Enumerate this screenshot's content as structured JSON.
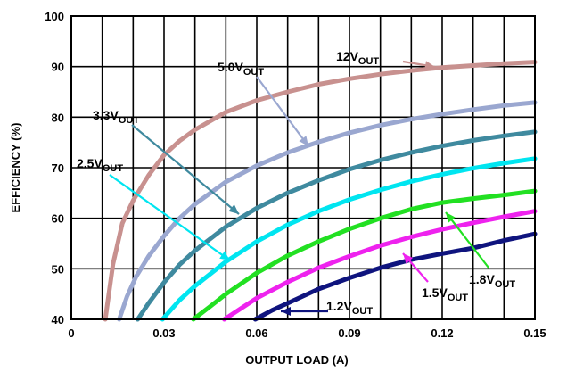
{
  "chart_data": {
    "type": "line",
    "xlabel": "OUTPUT LOAD (A)",
    "ylabel": "EFFICIENCY (%)",
    "xlim": [
      0,
      0.15
    ],
    "ylim": [
      40,
      100
    ],
    "x_ticks": [
      "0",
      "0.03",
      "0.06",
      "0.09",
      "0.12",
      "0.15"
    ],
    "y_ticks": [
      "40",
      "50",
      "60",
      "70",
      "80",
      "90",
      "100"
    ],
    "grid": true,
    "series": [
      {
        "name": "12V",
        "name_sub": "OUT",
        "color": "#c8918f",
        "x": [
          0.011,
          0.0135,
          0.0165,
          0.02,
          0.025,
          0.03,
          0.035,
          0.04,
          0.05,
          0.06,
          0.07,
          0.08,
          0.09,
          0.1,
          0.11,
          0.12,
          0.13,
          0.14,
          0.15
        ],
        "y": [
          40,
          51,
          59,
          63.5,
          68.5,
          72.5,
          75.3,
          77.5,
          81,
          83.3,
          85,
          86.5,
          87.6,
          88.5,
          89.2,
          89.8,
          90.2,
          90.6,
          90.9
        ]
      },
      {
        "name": "5.0V",
        "name_sub": "OUT",
        "color": "#9aa7d0",
        "x": [
          0.0155,
          0.018,
          0.021,
          0.025,
          0.03,
          0.035,
          0.04,
          0.05,
          0.06,
          0.07,
          0.08,
          0.09,
          0.1,
          0.11,
          0.12,
          0.13,
          0.14,
          0.15
        ],
        "y": [
          40,
          44.5,
          48.5,
          52.5,
          56.5,
          60,
          62.8,
          67.2,
          70.4,
          73,
          75.1,
          76.9,
          78.4,
          79.6,
          80.6,
          81.5,
          82.3,
          82.9
        ]
      },
      {
        "name": "3.3V",
        "name_sub": "OUT",
        "color": "#3f8a9f",
        "x": [
          0.0215,
          0.025,
          0.03,
          0.035,
          0.04,
          0.05,
          0.06,
          0.07,
          0.08,
          0.09,
          0.1,
          0.11,
          0.12,
          0.13,
          0.14,
          0.15
        ],
        "y": [
          40,
          43.2,
          47.3,
          50.8,
          53.6,
          58.3,
          62,
          65,
          67.5,
          69.7,
          71.5,
          73,
          74.3,
          75.4,
          76.3,
          77.1
        ]
      },
      {
        "name": "2.5V",
        "name_sub": "OUT",
        "color": "#00e5f0",
        "x": [
          0.0295,
          0.035,
          0.04,
          0.05,
          0.06,
          0.07,
          0.08,
          0.09,
          0.1,
          0.11,
          0.12,
          0.13,
          0.14,
          0.15
        ],
        "y": [
          40,
          43.8,
          46.6,
          51.4,
          55.4,
          58.7,
          61.4,
          63.7,
          65.6,
          67.3,
          68.7,
          69.9,
          70.9,
          71.8
        ]
      },
      {
        "name": "1.8V",
        "name_sub": "OUT",
        "color": "#22e022",
        "x": [
          0.0395,
          0.045,
          0.05,
          0.06,
          0.07,
          0.08,
          0.09,
          0.1,
          0.11,
          0.12,
          0.13,
          0.14,
          0.15
        ],
        "y": [
          40,
          42.6,
          45,
          49.2,
          52.6,
          55.4,
          57.9,
          60,
          61.8,
          63.1,
          63.9,
          64.6,
          65.4
        ]
      },
      {
        "name": "1.5V",
        "name_sub": "OUT",
        "color": "#ee22ee",
        "x": [
          0.0495,
          0.055,
          0.06,
          0.07,
          0.08,
          0.09,
          0.1,
          0.11,
          0.12,
          0.13,
          0.14,
          0.15
        ],
        "y": [
          40,
          42.2,
          44.2,
          47.4,
          50.2,
          52.5,
          54.6,
          56.3,
          57.8,
          59.1,
          60.3,
          61.4
        ]
      },
      {
        "name": "1.2V",
        "name_sub": "OUT",
        "color": "#0f147e",
        "x": [
          0.0595,
          0.065,
          0.07,
          0.08,
          0.09,
          0.1,
          0.11,
          0.12,
          0.13,
          0.14,
          0.15
        ],
        "y": [
          40,
          41.8,
          43.2,
          46,
          48.2,
          50.2,
          51.8,
          53,
          54.1,
          55.6,
          56.9
        ]
      }
    ]
  }
}
